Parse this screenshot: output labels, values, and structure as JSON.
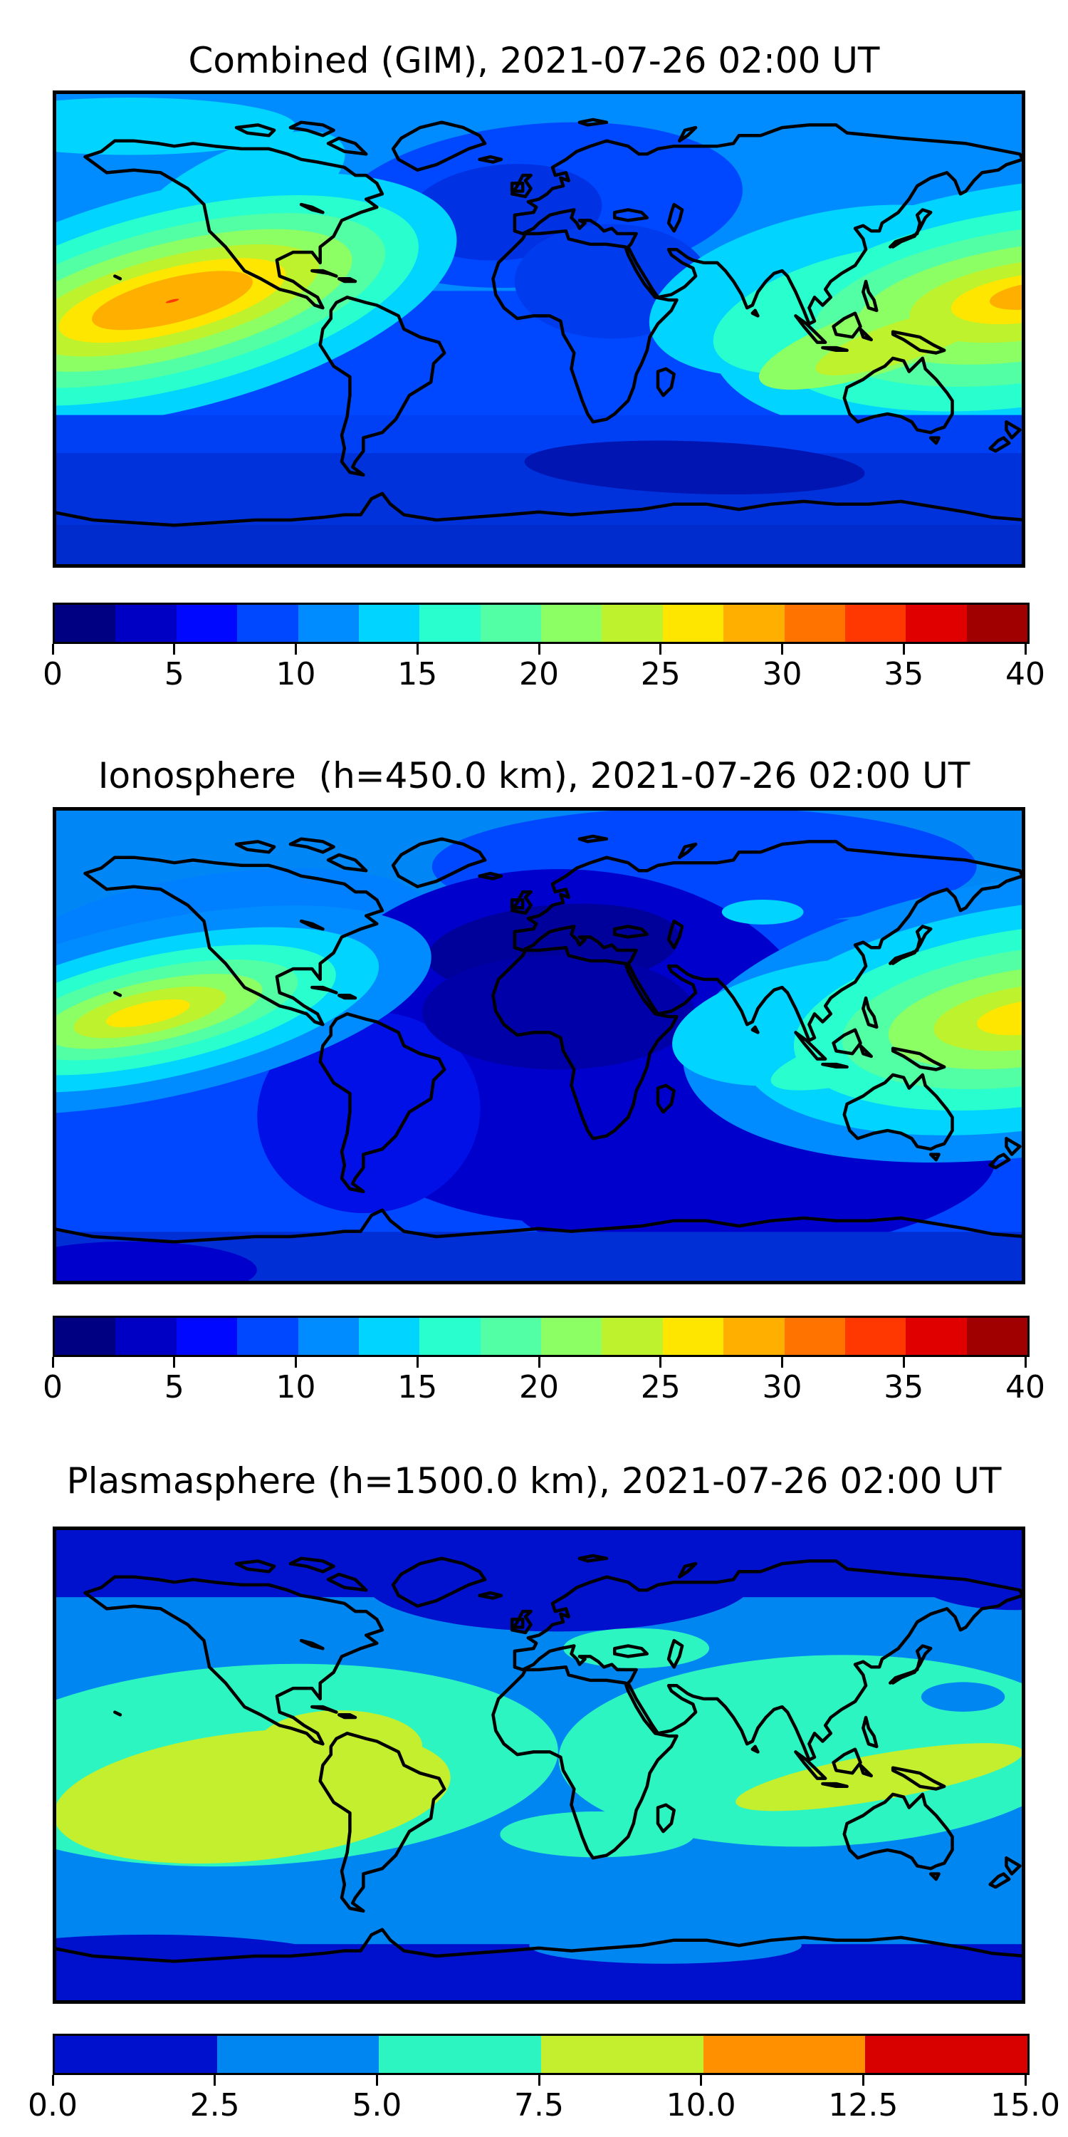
{
  "page": {
    "background": "#ffffff"
  },
  "chart_data": [
    {
      "type": "heatmap",
      "subtype": "filled-contour-world-map",
      "title": "Combined (GIM), 2021-07-26 02:00 UT",
      "projection": "equirectangular",
      "lon_range": [
        -180,
        180
      ],
      "lat_range": [
        -90,
        90
      ],
      "colormap": "jet",
      "levels": [
        0,
        2.5,
        5,
        7.5,
        10,
        12.5,
        15,
        17.5,
        20,
        22.5,
        25,
        27.5,
        30,
        32.5,
        35,
        37.5,
        40
      ],
      "colorbar": {
        "vmin": 0,
        "vmax": 40,
        "tick_labels": [
          "0",
          "5",
          "10",
          "15",
          "20",
          "25",
          "30",
          "35",
          "40"
        ],
        "colors": [
          "#000083",
          "#0000c4",
          "#0008ff",
          "#0048ff",
          "#008cff",
          "#00d4ff",
          "#29ffce",
          "#53ffa4",
          "#8cff64",
          "#bdf22d",
          "#ffe600",
          "#ffaf00",
          "#ff7300",
          "#ff3700",
          "#e10000",
          "#a00000"
        ]
      },
      "notable_features": [
        "East Pacific equatorial anomaly maximum ~32 TEC near lon -136, lat 11 (orange core with tiny red spot)",
        "West Pacific maximum ~30 TEC near the dateline, lat ~12, yellow-green tongue over SE Asia",
        "Dark royal-blue minimum region over North Atlantic / Europe",
        "Dark navy minimum band ~2.5-5 over southern Indian Ocean",
        "Light blue / cyan mid-values over North America and Arctic Pacific"
      ],
      "features": [
        {
          "shape": "rect",
          "x": 0,
          "y": 0,
          "w": 1,
          "h": 1,
          "color": "#0048ff"
        },
        {
          "shape": "rect",
          "x": 0,
          "y": 0,
          "w": 1,
          "h": 0.42,
          "color": "#008cff"
        },
        {
          "shape": "ellipse",
          "cx": 0.08,
          "cy": 0.075,
          "rx": 0.17,
          "ry": 0.06,
          "rot": 0,
          "color": "#00d4ff"
        },
        {
          "shape": "ellipse",
          "cx": 0.19,
          "cy": 0.22,
          "rx": 0.12,
          "ry": 0.095,
          "rot": -25,
          "color": "#00d4ff"
        },
        {
          "shape": "ellipse",
          "cx": 0.5,
          "cy": 0.24,
          "rx": 0.21,
          "ry": 0.17,
          "rot": -5,
          "color": "#0048ff"
        },
        {
          "shape": "ellipse",
          "cx": 0.465,
          "cy": 0.255,
          "rx": 0.1,
          "ry": 0.1,
          "rot": -5,
          "color": "#0032e4"
        },
        {
          "shape": "ellipse",
          "cx": 0.575,
          "cy": 0.4,
          "rx": 0.1,
          "ry": 0.12,
          "rot": 0,
          "color": "#003cee"
        },
        {
          "shape": "ellipse",
          "cx": 0.123,
          "cy": 0.44,
          "rx": 0.3,
          "ry": 0.23,
          "rot": -14,
          "color": "#00d4ff"
        },
        {
          "shape": "ellipse",
          "cx": 0.123,
          "cy": 0.44,
          "rx": 0.26,
          "ry": 0.185,
          "rot": -14,
          "color": "#29ffce"
        },
        {
          "shape": "ellipse",
          "cx": 0.123,
          "cy": 0.44,
          "rx": 0.225,
          "ry": 0.15,
          "rot": -14,
          "color": "#53ffa4"
        },
        {
          "shape": "ellipse",
          "cx": 0.123,
          "cy": 0.44,
          "rx": 0.19,
          "ry": 0.12,
          "rot": -14,
          "color": "#8cff64"
        },
        {
          "shape": "ellipse",
          "cx": 0.123,
          "cy": 0.44,
          "rx": 0.155,
          "ry": 0.092,
          "rot": -14,
          "color": "#bdf22d"
        },
        {
          "shape": "ellipse",
          "cx": 0.123,
          "cy": 0.44,
          "rx": 0.12,
          "ry": 0.068,
          "rot": -14,
          "color": "#ffe600"
        },
        {
          "shape": "ellipse",
          "cx": 0.123,
          "cy": 0.44,
          "rx": 0.085,
          "ry": 0.047,
          "rot": -14,
          "color": "#ffaf00"
        },
        {
          "shape": "ellipse",
          "cx": 0.123,
          "cy": 0.441,
          "rx": 0.007,
          "ry": 0.0028,
          "rot": -14,
          "color": "#ff3700"
        },
        {
          "shape": "ellipse",
          "cx": 0.8,
          "cy": 0.42,
          "rx": 0.19,
          "ry": 0.165,
          "rot": -12,
          "color": "#00d4ff"
        },
        {
          "shape": "ellipse",
          "cx": 1.005,
          "cy": 0.455,
          "rx": 0.33,
          "ry": 0.26,
          "rot": -8,
          "color": "#00d4ff"
        },
        {
          "shape": "ellipse",
          "cx": 0.82,
          "cy": 0.46,
          "rx": 0.145,
          "ry": 0.115,
          "rot": -15,
          "color": "#29ffce"
        },
        {
          "shape": "ellipse",
          "cx": 1.005,
          "cy": 0.455,
          "rx": 0.275,
          "ry": 0.205,
          "rot": -8,
          "color": "#29ffce"
        },
        {
          "shape": "ellipse",
          "cx": 1.005,
          "cy": 0.45,
          "rx": 0.225,
          "ry": 0.16,
          "rot": -8,
          "color": "#53ffa4"
        },
        {
          "shape": "ellipse",
          "cx": 0.855,
          "cy": 0.52,
          "rx": 0.135,
          "ry": 0.068,
          "rot": -18,
          "color": "#8cff64"
        },
        {
          "shape": "ellipse",
          "cx": 1.005,
          "cy": 0.445,
          "rx": 0.18,
          "ry": 0.12,
          "rot": -8,
          "color": "#8cff64"
        },
        {
          "shape": "ellipse",
          "cx": 0.875,
          "cy": 0.525,
          "rx": 0.095,
          "ry": 0.042,
          "rot": -18,
          "color": "#bdf22d"
        },
        {
          "shape": "ellipse",
          "cx": 1.005,
          "cy": 0.44,
          "rx": 0.125,
          "ry": 0.082,
          "rot": -8,
          "color": "#bdf22d"
        },
        {
          "shape": "ellipse",
          "cx": 1.005,
          "cy": 0.435,
          "rx": 0.082,
          "ry": 0.05,
          "rot": -8,
          "color": "#ffe600"
        },
        {
          "shape": "ellipse",
          "cx": 1.008,
          "cy": 0.43,
          "rx": 0.045,
          "ry": 0.027,
          "rot": -8,
          "color": "#ffaf00"
        },
        {
          "shape": "rect",
          "x": 0,
          "y": 0.68,
          "w": 1,
          "h": 0.32,
          "color": "#0040f5"
        },
        {
          "shape": "rect",
          "x": 0,
          "y": 0.76,
          "w": 1,
          "h": 0.15,
          "color": "#0032dc"
        },
        {
          "shape": "ellipse",
          "cx": 0.66,
          "cy": 0.79,
          "rx": 0.175,
          "ry": 0.055,
          "rot": 2,
          "color": "#0015b2"
        },
        {
          "shape": "rect",
          "x": 0,
          "y": 0.91,
          "w": 1,
          "h": 0.09,
          "color": "#002ccd"
        }
      ]
    },
    {
      "type": "heatmap",
      "subtype": "filled-contour-world-map",
      "title": "Ionosphere  (h=450.0 km), 2021-07-26 02:00 UT",
      "projection": "equirectangular",
      "lon_range": [
        -180,
        180
      ],
      "lat_range": [
        -90,
        90
      ],
      "colormap": "jet",
      "levels": [
        0,
        2.5,
        5,
        7.5,
        10,
        12.5,
        15,
        17.5,
        20,
        22.5,
        25,
        27.5,
        30,
        32.5,
        35,
        37.5,
        40
      ],
      "colorbar": {
        "vmin": 0,
        "vmax": 40,
        "tick_labels": [
          "0",
          "5",
          "10",
          "15",
          "20",
          "25",
          "30",
          "35",
          "40"
        ],
        "colors": [
          "#000083",
          "#0000c4",
          "#0008ff",
          "#0048ff",
          "#008cff",
          "#00d4ff",
          "#29ffce",
          "#53ffa4",
          "#8cff64",
          "#bdf22d",
          "#ffe600",
          "#ffaf00",
          "#ff7300",
          "#ff3700",
          "#e10000",
          "#a00000"
        ]
      },
      "notable_features": [
        "Yellow maximum ~23 TEC near Hawaii (lon -142, lat 13)",
        "Second yellow maximum at the dateline (lat ~12) with green halo over the west Pacific",
        "Very dark navy minimum ~0-2.5 over Mediterranean, Sahara and central Atlantic",
        "Small cyan patch over northeast Asia",
        "Broad dark navy region over south Atlantic and south Indian Ocean"
      ],
      "features": [
        {
          "shape": "rect",
          "x": 0,
          "y": 0,
          "w": 1,
          "h": 1,
          "color": "#0048ff"
        },
        {
          "shape": "rect",
          "x": 0,
          "y": 0,
          "w": 1,
          "h": 0.235,
          "color": "#0086f5"
        },
        {
          "shape": "ellipse",
          "cx": 0.67,
          "cy": 0.125,
          "rx": 0.28,
          "ry": 0.125,
          "rot": 0,
          "color": "#0048ff"
        },
        {
          "shape": "ellipse",
          "cx": 0.17,
          "cy": 0.28,
          "rx": 0.22,
          "ry": 0.14,
          "rot": -8,
          "color": "#0080ff"
        },
        {
          "shape": "ellipse",
          "cx": 0.52,
          "cy": 0.5,
          "rx": 0.27,
          "ry": 0.37,
          "rot": 0,
          "color": "#0000cd"
        },
        {
          "shape": "ellipse",
          "cx": 0.72,
          "cy": 0.78,
          "rx": 0.25,
          "ry": 0.16,
          "rot": -5,
          "color": "#0000cd"
        },
        {
          "shape": "ellipse",
          "cx": 0.325,
          "cy": 0.64,
          "rx": 0.115,
          "ry": 0.21,
          "rot": -10,
          "color": "#0010e6"
        },
        {
          "shape": "ellipse",
          "cx": 0.515,
          "cy": 0.295,
          "rx": 0.13,
          "ry": 0.09,
          "rot": -5,
          "color": "#00009b"
        },
        {
          "shape": "ellipse",
          "cx": 0.52,
          "cy": 0.43,
          "rx": 0.14,
          "ry": 0.12,
          "rot": 0,
          "color": "#0000a8"
        },
        {
          "shape": "ellipse",
          "cx": 0.105,
          "cy": 0.425,
          "rx": 0.29,
          "ry": 0.185,
          "rot": -12,
          "color": "#008cff"
        },
        {
          "shape": "ellipse",
          "cx": 0.105,
          "cy": 0.425,
          "rx": 0.235,
          "ry": 0.145,
          "rot": -12,
          "color": "#00d4ff"
        },
        {
          "shape": "ellipse",
          "cx": 0.105,
          "cy": 0.425,
          "rx": 0.19,
          "ry": 0.113,
          "rot": -12,
          "color": "#29ffce"
        },
        {
          "shape": "ellipse",
          "cx": 0.105,
          "cy": 0.425,
          "rx": 0.15,
          "ry": 0.086,
          "rot": -12,
          "color": "#53ffa4"
        },
        {
          "shape": "ellipse",
          "cx": 0.103,
          "cy": 0.428,
          "rx": 0.115,
          "ry": 0.063,
          "rot": -12,
          "color": "#8cff64"
        },
        {
          "shape": "ellipse",
          "cx": 0.1,
          "cy": 0.43,
          "rx": 0.08,
          "ry": 0.043,
          "rot": -12,
          "color": "#bdf22d"
        },
        {
          "shape": "ellipse",
          "cx": 0.098,
          "cy": 0.432,
          "rx": 0.044,
          "ry": 0.023,
          "rot": -12,
          "color": "#ffe600"
        },
        {
          "shape": "ellipse",
          "cx": 1.005,
          "cy": 0.44,
          "rx": 0.36,
          "ry": 0.29,
          "rot": -8,
          "color": "#008cff"
        },
        {
          "shape": "ellipse",
          "cx": 0.79,
          "cy": 0.45,
          "rx": 0.155,
          "ry": 0.125,
          "rot": -10,
          "color": "#00d4ff"
        },
        {
          "shape": "ellipse",
          "cx": 1.005,
          "cy": 0.44,
          "rx": 0.3,
          "ry": 0.235,
          "rot": -8,
          "color": "#00d4ff"
        },
        {
          "shape": "ellipse",
          "cx": 0.84,
          "cy": 0.52,
          "rx": 0.105,
          "ry": 0.05,
          "rot": -15,
          "color": "#29ffce"
        },
        {
          "shape": "ellipse",
          "cx": 1.005,
          "cy": 0.44,
          "rx": 0.245,
          "ry": 0.185,
          "rot": -8,
          "color": "#29ffce"
        },
        {
          "shape": "ellipse",
          "cx": 1.005,
          "cy": 0.44,
          "rx": 0.195,
          "ry": 0.142,
          "rot": -8,
          "color": "#53ffa4"
        },
        {
          "shape": "ellipse",
          "cx": 1.005,
          "cy": 0.44,
          "rx": 0.147,
          "ry": 0.102,
          "rot": -8,
          "color": "#8cff64"
        },
        {
          "shape": "ellipse",
          "cx": 1.005,
          "cy": 0.44,
          "rx": 0.1,
          "ry": 0.066,
          "rot": -8,
          "color": "#bdf22d"
        },
        {
          "shape": "ellipse",
          "cx": 1.005,
          "cy": 0.44,
          "rx": 0.055,
          "ry": 0.035,
          "rot": -8,
          "color": "#ffe600"
        },
        {
          "shape": "ellipse",
          "cx": 0.73,
          "cy": 0.22,
          "rx": 0.042,
          "ry": 0.026,
          "rot": 0,
          "color": "#00d4ff"
        },
        {
          "shape": "rect",
          "x": 0,
          "y": 0.89,
          "w": 1,
          "h": 0.11,
          "color": "#0030d5"
        },
        {
          "shape": "ellipse",
          "cx": 0.08,
          "cy": 0.97,
          "rx": 0.13,
          "ry": 0.06,
          "rot": 0,
          "color": "#0000cd"
        }
      ]
    },
    {
      "type": "heatmap",
      "subtype": "filled-contour-world-map",
      "title": "Plasmasphere (h=1500.0 km), 2021-07-26 02:00 UT",
      "projection": "equirectangular",
      "lon_range": [
        -180,
        180
      ],
      "lat_range": [
        -90,
        90
      ],
      "colormap": "jet",
      "levels": [
        0,
        2.5,
        5,
        7.5,
        10,
        12.5,
        15
      ],
      "colorbar": {
        "vmin": 0,
        "vmax": 15,
        "tick_labels": [
          "0.0",
          "2.5",
          "5.0",
          "7.5",
          "10.0",
          "12.5",
          "15.0"
        ],
        "colors": [
          "#0011cd",
          "#0086f0",
          "#2df5c2",
          "#c3ef2e",
          "#ff9000",
          "#d90000"
        ]
      },
      "notable_features": [
        "Yellow-green maximum band 7.5-10 centered over South America / east Pacific (lon ~-105, lat ~-12)",
        "Second yellow-green band 7.5-10 over Indonesia / northern Australia",
        "Broad turquoise 5-7.5 equatorial belt, pinched to 2.5-5 over east Africa",
        "Small 2.5-5 spot east of the Philippines and 5-7.5 spot near the Caspian Sea",
        "Dark blue 0-2.5 polar bands at top and bottom"
      ],
      "features": [
        {
          "shape": "rect",
          "x": 0,
          "y": 0,
          "w": 1,
          "h": 1,
          "color": "#0011cd"
        },
        {
          "shape": "rect",
          "x": 0,
          "y": 0.148,
          "w": 1,
          "h": 0.727,
          "color": "#0086f0"
        },
        {
          "shape": "ellipse",
          "cx": 0.52,
          "cy": 0.115,
          "rx": 0.2,
          "ry": 0.105,
          "rot": 0,
          "color": "#0011cd"
        },
        {
          "shape": "ellipse",
          "cx": 0.99,
          "cy": 0.115,
          "rx": 0.1,
          "ry": 0.06,
          "rot": 0,
          "color": "#0011cd"
        },
        {
          "shape": "ellipse",
          "cx": 0.63,
          "cy": 0.878,
          "rx": 0.14,
          "ry": 0.038,
          "rot": 0,
          "color": "#0086f0"
        },
        {
          "shape": "ellipse",
          "cx": 0.1,
          "cy": 0.93,
          "rx": 0.22,
          "ry": 0.075,
          "rot": 0,
          "color": "#0011cd"
        },
        {
          "shape": "ellipse",
          "cx": 0.21,
          "cy": 0.5,
          "rx": 0.31,
          "ry": 0.21,
          "rot": -3,
          "color": "#2df5c2"
        },
        {
          "shape": "ellipse",
          "cx": 0.79,
          "cy": 0.47,
          "rx": 0.27,
          "ry": 0.2,
          "rot": -2,
          "color": "#2df5c2"
        },
        {
          "shape": "ellipse",
          "cx": 0.56,
          "cy": 0.645,
          "rx": 0.1,
          "ry": 0.048,
          "rot": 0,
          "color": "#2df5c2"
        },
        {
          "shape": "ellipse",
          "cx": 0.6,
          "cy": 0.255,
          "rx": 0.075,
          "ry": 0.042,
          "rot": 0,
          "color": "#2df5c2"
        },
        {
          "shape": "ellipse",
          "cx": 0.205,
          "cy": 0.565,
          "rx": 0.205,
          "ry": 0.135,
          "rot": -6,
          "color": "#c3ef2e"
        },
        {
          "shape": "ellipse",
          "cx": 0.295,
          "cy": 0.46,
          "rx": 0.085,
          "ry": 0.075,
          "rot": 0,
          "color": "#c3ef2e"
        },
        {
          "shape": "ellipse",
          "cx": 0.85,
          "cy": 0.525,
          "rx": 0.15,
          "ry": 0.048,
          "rot": -10,
          "color": "#c3ef2e"
        },
        {
          "shape": "ellipse",
          "cx": 0.936,
          "cy": 0.357,
          "rx": 0.043,
          "ry": 0.031,
          "rot": 0,
          "color": "#0086f0"
        }
      ]
    }
  ]
}
